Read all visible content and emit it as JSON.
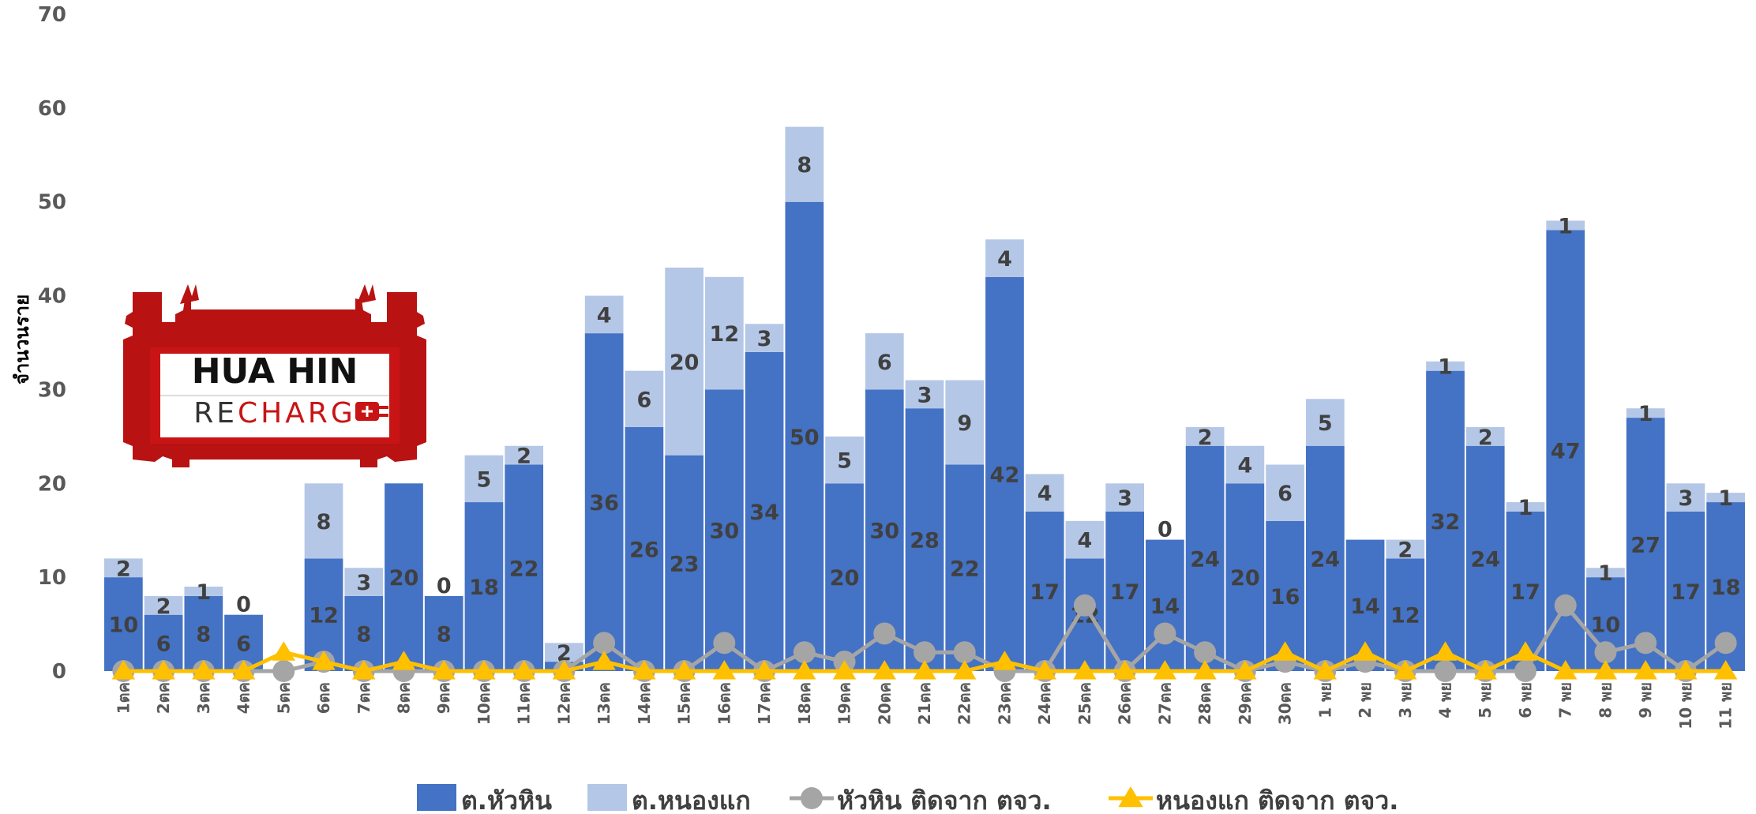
{
  "logo": {
    "line1": "HUA HIN",
    "line2a": "RE",
    "line2b": "CHARG"
  },
  "chart_data": {
    "type": "bar",
    "ylabel": "จำนวนราย",
    "ylim": [
      0,
      70
    ],
    "yticks": [
      0,
      10,
      20,
      30,
      40,
      50,
      60,
      70
    ],
    "categories": [
      "1ตค",
      "2ตค",
      "3ตค",
      "4ตค",
      "5ตค",
      "6ตค",
      "7ตค",
      "8ตค",
      "9ตค",
      "10ตค",
      "11ตค",
      "12ตค",
      "13ตค",
      "14ตค",
      "15ตค",
      "16ตค",
      "17ตค",
      "18ตค",
      "19ตค",
      "20ตค",
      "21ตค",
      "22ตค",
      "23ตค",
      "24ตค",
      "25ตค",
      "26ตค",
      "27ตค",
      "28ตค",
      "29ตค",
      "30ตค",
      "1 พย",
      "2 พย",
      "3 พย",
      "4 พย",
      "5 พย",
      "6 พย",
      "7 พย",
      "8 พย",
      "9 พย",
      "10 พย",
      "11 พย"
    ],
    "series": [
      {
        "name": "ต.หัวหิน",
        "kind": "bar",
        "color": "#4472C4",
        "values": [
          10,
          6,
          8,
          6,
          0,
          12,
          8,
          20,
          8,
          18,
          22,
          1,
          36,
          26,
          23,
          30,
          34,
          50,
          20,
          30,
          28,
          22,
          42,
          17,
          12,
          17,
          14,
          24,
          20,
          16,
          24,
          14,
          12,
          32,
          24,
          17,
          47,
          10,
          27,
          17,
          18
        ],
        "labels": [
          "10",
          "6",
          "8",
          "6",
          "",
          "12",
          "8",
          "20",
          "8",
          "18",
          "22",
          "1",
          "36",
          "26",
          "23",
          "30",
          "34",
          "50",
          "20",
          "30",
          "28",
          "22",
          "42",
          "17",
          "12",
          "17",
          "14",
          "24",
          "20",
          "16",
          "24",
          "14",
          "12",
          "32",
          "24",
          "17",
          "47",
          "10",
          "27",
          "17",
          "18"
        ]
      },
      {
        "name": "ต.หนองแก",
        "kind": "bar",
        "color": "#B4C7E7",
        "values": [
          2,
          2,
          1,
          0,
          0,
          8,
          3,
          0,
          0,
          5,
          2,
          2,
          4,
          6,
          20,
          12,
          3,
          8,
          5,
          6,
          3,
          9,
          4,
          4,
          4,
          3,
          0,
          2,
          4,
          6,
          5,
          0,
          2,
          1,
          2,
          1,
          1,
          1,
          1,
          3,
          1
        ],
        "labels": [
          "2",
          "2",
          "1",
          "0",
          "",
          "8",
          "3",
          "",
          "0",
          "5",
          "2",
          "2",
          "4",
          "6",
          "20",
          "12",
          "3",
          "8",
          "5",
          "6",
          "3",
          "9",
          "4",
          "4",
          "4",
          "3",
          "0",
          "2",
          "4",
          "6",
          "5",
          "",
          "2",
          "1",
          "2",
          "1",
          "1",
          "1",
          "1",
          "3",
          "1"
        ]
      },
      {
        "name": "หัวหิน ติดจาก ตจว.",
        "kind": "line",
        "color": "#A5A5A5",
        "marker": "circle",
        "values": [
          0,
          0,
          0,
          0,
          0,
          1,
          0,
          0,
          0,
          0,
          0,
          0,
          3,
          0,
          0,
          3,
          0,
          2,
          1,
          4,
          2,
          2,
          0,
          0,
          7,
          0,
          4,
          2,
          0,
          1,
          0,
          1,
          0,
          0,
          0,
          0,
          7,
          2,
          3,
          0,
          3
        ]
      },
      {
        "name": "หนองแก ติดจาก ตจว.",
        "kind": "line",
        "color": "#FFC000",
        "marker": "triangle",
        "values": [
          0,
          0,
          0,
          0,
          2,
          1,
          0,
          1,
          0,
          0,
          0,
          0,
          1,
          0,
          0,
          0,
          0,
          0,
          0,
          0,
          0,
          0,
          1,
          0,
          0,
          0,
          0,
          0,
          0,
          2,
          0,
          2,
          0,
          2,
          0,
          2,
          0,
          0,
          0,
          0,
          0
        ]
      }
    ],
    "point_labels": [
      {
        "index": 4,
        "text": "0"
      }
    ],
    "legend": "bottom"
  }
}
